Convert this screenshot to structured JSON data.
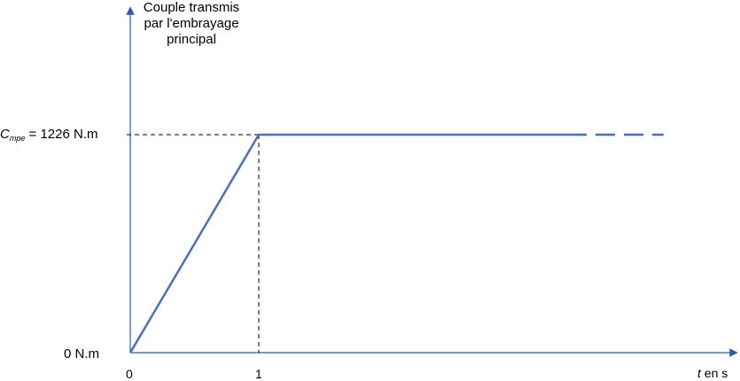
{
  "chart_data": {
    "type": "line",
    "ylabel_lines": [
      "Couple transmis",
      "par l'embrayage",
      "principal"
    ],
    "annotation": {
      "symbol": "C",
      "subscript": "mpe",
      "equals": "=",
      "value": 1226,
      "text": "1226 N.m"
    },
    "y_min_label": "0 N.m",
    "x_tick_labels": [
      "0",
      "1"
    ],
    "xlabel_var": "t",
    "xlabel_unit": "en s",
    "x": [
      0,
      1,
      3.4
    ],
    "y": [
      0,
      1226,
      1226
    ],
    "dashed_continuation": {
      "x": [
        3.4,
        4.15
      ],
      "y": [
        1226,
        1226
      ]
    },
    "xlim": [
      0,
      4.7
    ],
    "ylim": [
      0,
      1226
    ],
    "grid": false,
    "colors": {
      "series": "#4a6fc0",
      "axis": "#2b5dab",
      "guide": "#000000"
    }
  }
}
